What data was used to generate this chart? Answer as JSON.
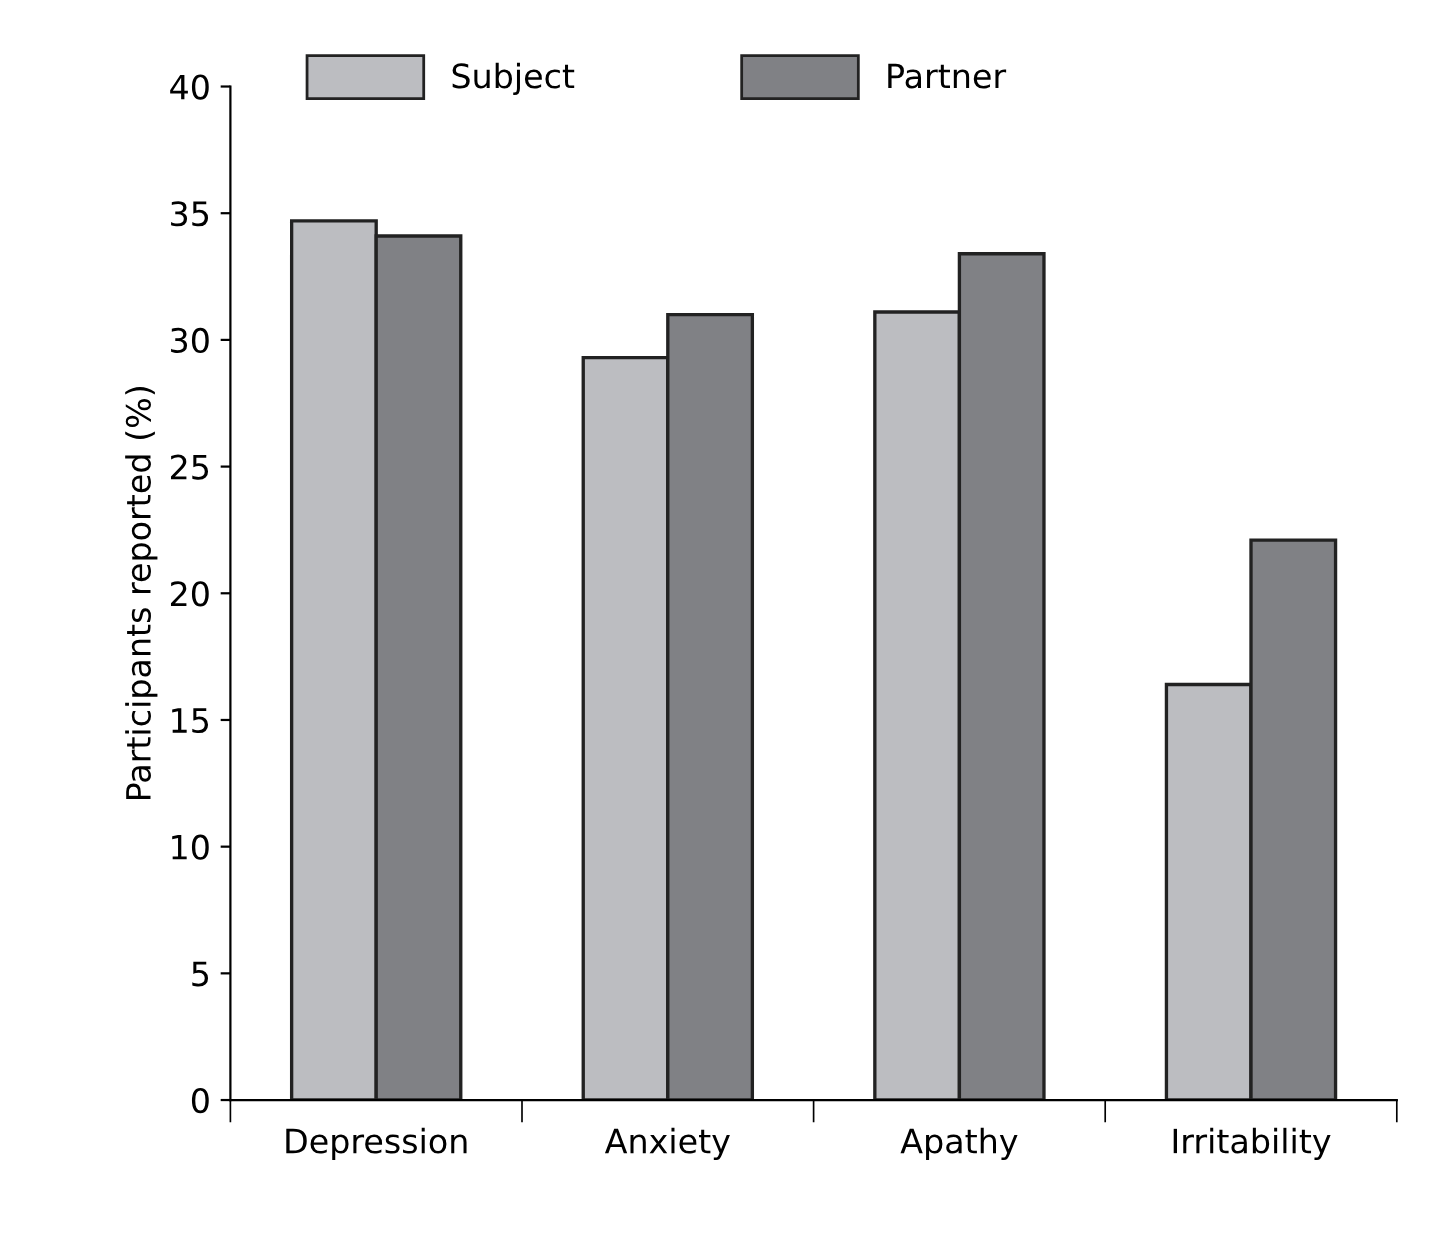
{
  "chart_data": {
    "type": "bar",
    "ylabel": "Participants reported (%)",
    "categories": [
      "Depression",
      "Anxiety",
      "Apathy",
      "Irritability"
    ],
    "series": [
      {
        "name": "Subject",
        "color": "#bcbdc1",
        "values": [
          34.7,
          29.3,
          31.1,
          16.4
        ]
      },
      {
        "name": "Partner",
        "color": "#808185",
        "values": [
          34.1,
          31.0,
          33.4,
          22.1
        ]
      }
    ],
    "ylim": [
      0,
      40
    ],
    "yticks": [
      0,
      5,
      10,
      15,
      20,
      25,
      30,
      35,
      40
    ],
    "grid": false,
    "legend": "top left"
  }
}
